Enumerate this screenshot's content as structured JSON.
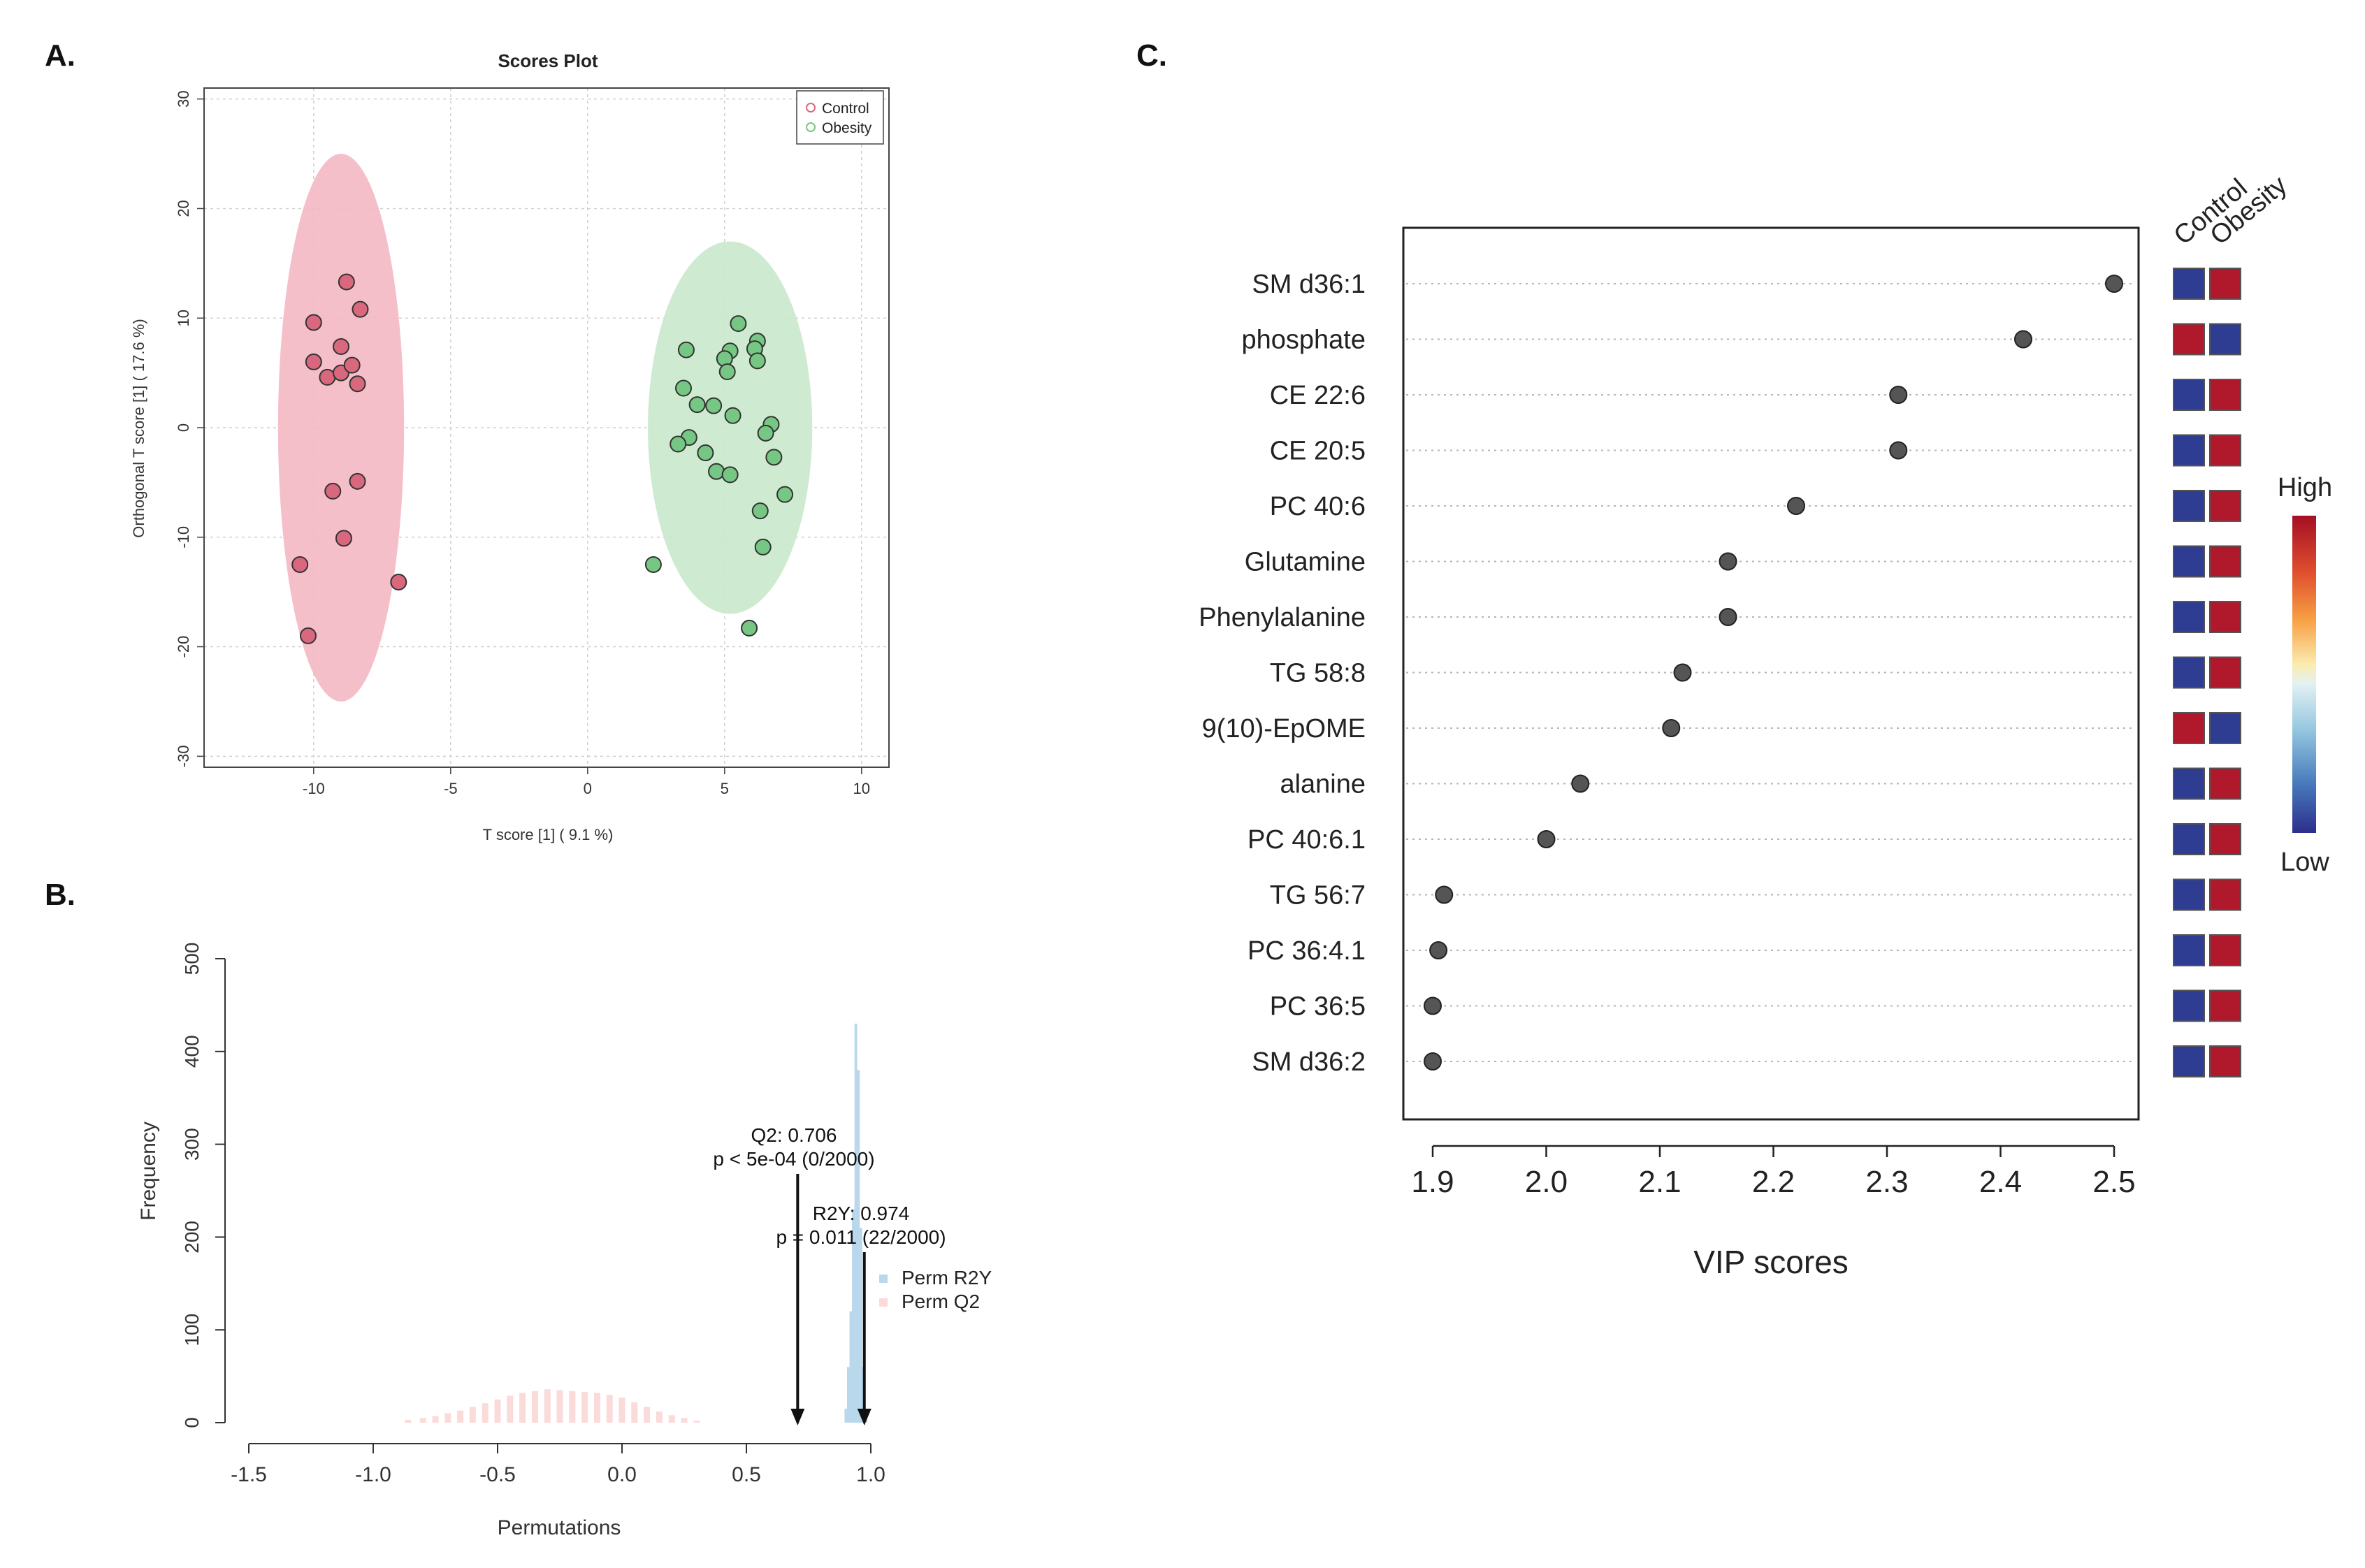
{
  "panel_labels": {
    "a": "A.",
    "b": "B.",
    "c": "C."
  },
  "chart_data": [
    {
      "id": "A",
      "type": "scatter",
      "title": "Scores Plot",
      "xlabel": "T score [1] ( 9.1 %)",
      "ylabel": "Orthogonal T score [1] ( 17.6 %)",
      "xlim": [
        -14,
        11
      ],
      "ylim": [
        -31,
        31
      ],
      "x_ticks": [
        -10,
        -5,
        0,
        5,
        10
      ],
      "y_ticks": [
        -30,
        -20,
        -10,
        0,
        10,
        20,
        30
      ],
      "grid": true,
      "legend_position": "top-right",
      "series": [
        {
          "name": "Control",
          "color": "#d9687e",
          "ellipse_color": "#f4b8c4",
          "ellipse": {
            "cx": -9.0,
            "cy": 0.0,
            "rx": 2.3,
            "ry": 25.0
          },
          "points": [
            [
              -8.8,
              13.3
            ],
            [
              -10.0,
              9.6
            ],
            [
              -8.3,
              10.8
            ],
            [
              -10.0,
              6.0
            ],
            [
              -9.0,
              7.4
            ],
            [
              -9.5,
              4.6
            ],
            [
              -9.0,
              5.0
            ],
            [
              -8.6,
              5.7
            ],
            [
              -8.4,
              4.0
            ],
            [
              -9.3,
              -5.8
            ],
            [
              -8.4,
              -4.9
            ],
            [
              -8.9,
              -10.1
            ],
            [
              -10.5,
              -12.5
            ],
            [
              -6.9,
              -14.1
            ],
            [
              -10.2,
              -19.0
            ]
          ]
        },
        {
          "name": "Obesity",
          "color": "#77c784",
          "ellipse_color": "#c9e8cb",
          "ellipse": {
            "cx": 5.2,
            "cy": 0.0,
            "rx": 3.0,
            "ry": 17.0
          },
          "points": [
            [
              5.5,
              9.5
            ],
            [
              6.2,
              7.9
            ],
            [
              6.1,
              7.2
            ],
            [
              3.6,
              7.1
            ],
            [
              5.2,
              7.0
            ],
            [
              5.0,
              6.3
            ],
            [
              6.2,
              6.1
            ],
            [
              5.1,
              5.1
            ],
            [
              3.5,
              3.6
            ],
            [
              4.0,
              2.1
            ],
            [
              4.6,
              2.0
            ],
            [
              5.3,
              1.1
            ],
            [
              6.7,
              0.3
            ],
            [
              3.7,
              -0.9
            ],
            [
              3.3,
              -1.5
            ],
            [
              6.5,
              -0.5
            ],
            [
              4.3,
              -2.3
            ],
            [
              6.8,
              -2.7
            ],
            [
              4.7,
              -4.0
            ],
            [
              5.2,
              -4.3
            ],
            [
              7.2,
              -6.1
            ],
            [
              6.3,
              -7.6
            ],
            [
              6.4,
              -10.9
            ],
            [
              2.4,
              -12.5
            ],
            [
              5.9,
              -18.3
            ]
          ]
        }
      ]
    },
    {
      "id": "B",
      "type": "bar",
      "xlabel": "Permutations",
      "ylabel": "Frequency",
      "xlim": [
        -1.55,
        1.05
      ],
      "ylim": [
        0,
        500
      ],
      "x_tick_labels": [
        "-1.5",
        "-1.0",
        "-0.5",
        "0.0",
        "0.5",
        "1.0"
      ],
      "x_ticks": [
        -1.5,
        -1.0,
        -0.5,
        0.0,
        0.5,
        1.0
      ],
      "y_ticks": [
        0,
        100,
        200,
        300,
        400,
        500
      ],
      "legend_position": "right",
      "series": [
        {
          "name": "Perm R2Y",
          "color": "#b9d8ec",
          "bars": [
            [
              0.9,
              15
            ],
            [
              0.91,
              60
            ],
            [
              0.92,
              120
            ],
            [
              0.93,
              230
            ],
            [
              0.94,
              430
            ],
            [
              0.95,
              380
            ],
            [
              0.96,
              210
            ],
            [
              0.97,
              60
            ],
            [
              0.98,
              15
            ]
          ]
        },
        {
          "name": "Perm Q2",
          "color": "#fbdada",
          "bars": [
            [
              -0.86,
              3
            ],
            [
              -0.8,
              5
            ],
            [
              -0.75,
              7
            ],
            [
              -0.7,
              10
            ],
            [
              -0.65,
              13
            ],
            [
              -0.6,
              17
            ],
            [
              -0.55,
              21
            ],
            [
              -0.5,
              25
            ],
            [
              -0.45,
              29
            ],
            [
              -0.4,
              32
            ],
            [
              -0.35,
              34
            ],
            [
              -0.3,
              36
            ],
            [
              -0.25,
              35
            ],
            [
              -0.2,
              34
            ],
            [
              -0.15,
              33
            ],
            [
              -0.1,
              32
            ],
            [
              -0.05,
              30
            ],
            [
              0.0,
              27
            ],
            [
              0.05,
              22
            ],
            [
              0.1,
              17
            ],
            [
              0.15,
              12
            ],
            [
              0.2,
              8
            ],
            [
              0.25,
              5
            ],
            [
              0.3,
              2
            ]
          ]
        }
      ],
      "annotations": [
        {
          "line1": "Q2: 0.706",
          "line2": "p < 5e-04 (0/2000)",
          "x": 0.706
        },
        {
          "line1": "R2Y: 0.974",
          "line2": "p = 0.011 (22/2000)",
          "x": 0.974
        }
      ]
    },
    {
      "id": "C",
      "type": "scatter",
      "xlabel": "VIP scores",
      "xlim": [
        1.88,
        2.52
      ],
      "x_ticks": [
        1.9,
        2.0,
        2.1,
        2.2,
        2.3,
        2.4,
        2.5
      ],
      "x_tick_labels": [
        "1.9",
        "2.0",
        "2.1",
        "2.2",
        "2.3",
        "2.4",
        "2.5"
      ],
      "heat_columns": [
        "Control",
        "Obesity"
      ],
      "colorbar": {
        "high_label": "High",
        "low_label": "Low",
        "high_color": "#b0182b",
        "low_color": "#2e3c92"
      },
      "features": [
        {
          "name": "SM d36:1",
          "vip": 2.5,
          "control": "low",
          "obesity": "high"
        },
        {
          "name": "phosphate",
          "vip": 2.42,
          "control": "high",
          "obesity": "low"
        },
        {
          "name": "CE 22:6",
          "vip": 2.31,
          "control": "low",
          "obesity": "high"
        },
        {
          "name": "CE 20:5",
          "vip": 2.31,
          "control": "low",
          "obesity": "high"
        },
        {
          "name": "PC 40:6",
          "vip": 2.22,
          "control": "low",
          "obesity": "high"
        },
        {
          "name": "Glutamine",
          "vip": 2.16,
          "control": "low",
          "obesity": "high"
        },
        {
          "name": "Phenylalanine",
          "vip": 2.16,
          "control": "low",
          "obesity": "high"
        },
        {
          "name": "TG 58:8",
          "vip": 2.12,
          "control": "low",
          "obesity": "high"
        },
        {
          "name": "9(10)-EpOME",
          "vip": 2.11,
          "control": "high",
          "obesity": "low"
        },
        {
          "name": "alanine",
          "vip": 2.03,
          "control": "low",
          "obesity": "high"
        },
        {
          "name": "PC 40:6.1",
          "vip": 2.0,
          "control": "low",
          "obesity": "high"
        },
        {
          "name": "TG 56:7",
          "vip": 1.91,
          "control": "low",
          "obesity": "high"
        },
        {
          "name": "PC 36:4.1",
          "vip": 1.905,
          "control": "low",
          "obesity": "high"
        },
        {
          "name": "PC 36:5",
          "vip": 1.9,
          "control": "low",
          "obesity": "high"
        },
        {
          "name": "SM d36:2",
          "vip": 1.9,
          "control": "low",
          "obesity": "high"
        }
      ]
    }
  ]
}
